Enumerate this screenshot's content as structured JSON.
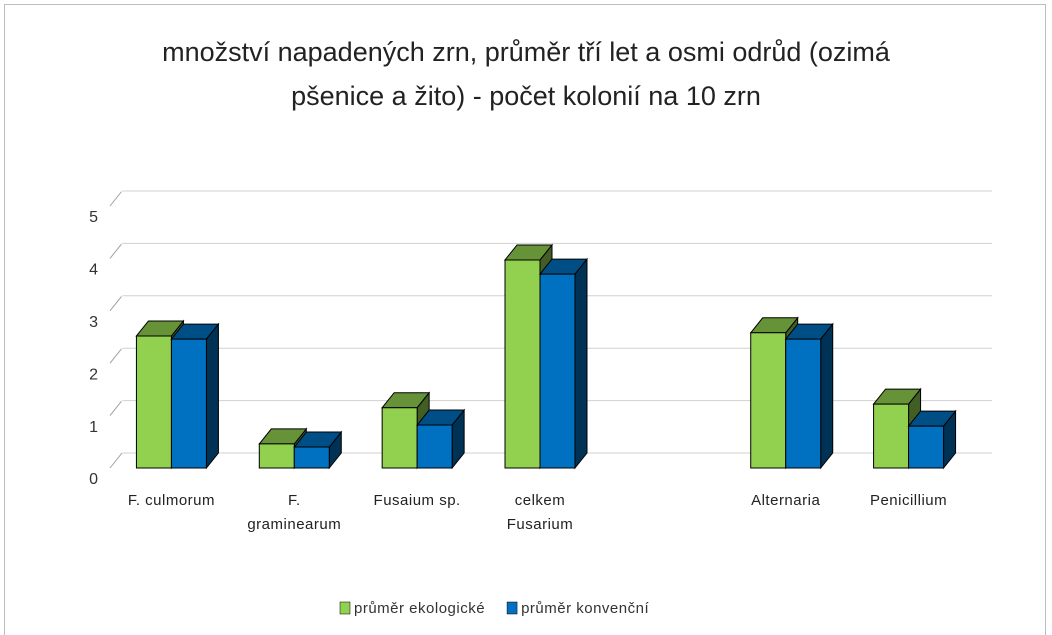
{
  "chart_data": {
    "type": "bar3d",
    "title": "množství napadených zrn, průměr tří let a osmi odrůd (ozimá pšenice a žito)  - počet kolonií na 10 zrn",
    "categories": [
      "F. culmorum",
      "F. graminearum",
      "Fusaium sp.",
      "celkem Fusarium",
      null,
      "Alternaria",
      "Penicillium"
    ],
    "series": [
      {
        "name": "průměr ekologické",
        "color": "#92d050",
        "values": [
          2.52,
          0.46,
          1.15,
          3.97,
          null,
          2.58,
          1.22
        ]
      },
      {
        "name": "průměr konvenční",
        "color": "#0070c0",
        "values": [
          2.46,
          0.4,
          0.82,
          3.7,
          null,
          2.46,
          0.8
        ]
      }
    ],
    "ylim": [
      0,
      5
    ],
    "yticks": [
      0,
      1,
      2,
      3,
      4,
      5
    ],
    "grid": true,
    "legend": "bottom"
  }
}
